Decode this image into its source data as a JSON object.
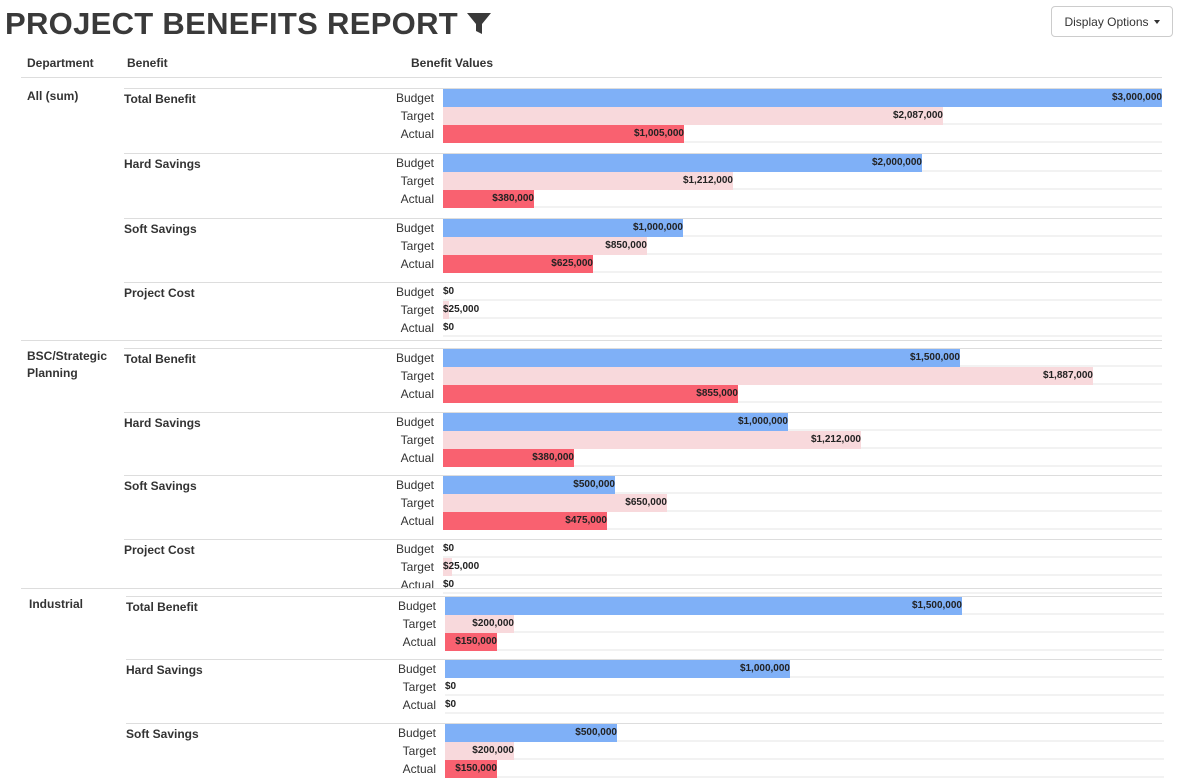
{
  "header": {
    "title": "PROJECT BENEFITS REPORT",
    "filter_icon": "filter-icon",
    "display_options_label": "Display Options"
  },
  "table": {
    "columns": [
      "Department",
      "Benefit",
      "Benefit Values"
    ],
    "row_labels": [
      "Budget",
      "Target",
      "Actual"
    ]
  },
  "chart_data": {
    "type": "bar",
    "orientation": "horizontal",
    "series_colors": {
      "Budget": "#7fb0f7",
      "Target": "#f8d9dc",
      "Actual": "#f96170"
    },
    "departments": [
      {
        "name": "All (sum)",
        "max": 3000000,
        "benefits": [
          {
            "name": "Total Benefit",
            "rows": [
              {
                "series": "Budget",
                "value": 3000000,
                "label": "$3,000,000"
              },
              {
                "series": "Target",
                "value": 2087000,
                "label": "$2,087,000"
              },
              {
                "series": "Actual",
                "value": 1005000,
                "label": "$1,005,000"
              }
            ]
          },
          {
            "name": "Hard Savings",
            "rows": [
              {
                "series": "Budget",
                "value": 2000000,
                "label": "$2,000,000"
              },
              {
                "series": "Target",
                "value": 1212000,
                "label": "$1,212,000"
              },
              {
                "series": "Actual",
                "value": 380000,
                "label": "$380,000"
              }
            ]
          },
          {
            "name": "Soft Savings",
            "rows": [
              {
                "series": "Budget",
                "value": 1000000,
                "label": "$1,000,000"
              },
              {
                "series": "Target",
                "value": 850000,
                "label": "$850,000"
              },
              {
                "series": "Actual",
                "value": 625000,
                "label": "$625,000"
              }
            ]
          },
          {
            "name": "Project Cost",
            "rows": [
              {
                "series": "Budget",
                "value": 0,
                "label": "$0"
              },
              {
                "series": "Target",
                "value": 25000,
                "label": "$25,000"
              },
              {
                "series": "Actual",
                "value": 0,
                "label": "$0"
              }
            ]
          }
        ]
      },
      {
        "name": "BSC/Strategic Planning",
        "max": 2087000,
        "benefits": [
          {
            "name": "Total Benefit",
            "rows": [
              {
                "series": "Budget",
                "value": 1500000,
                "label": "$1,500,000"
              },
              {
                "series": "Target",
                "value": 1887000,
                "label": "$1,887,000"
              },
              {
                "series": "Actual",
                "value": 855000,
                "label": "$855,000"
              }
            ]
          },
          {
            "name": "Hard Savings",
            "rows": [
              {
                "series": "Budget",
                "value": 1000000,
                "label": "$1,000,000"
              },
              {
                "series": "Target",
                "value": 1212000,
                "label": "$1,212,000"
              },
              {
                "series": "Actual",
                "value": 380000,
                "label": "$380,000"
              }
            ]
          },
          {
            "name": "Soft Savings",
            "rows": [
              {
                "series": "Budget",
                "value": 500000,
                "label": "$500,000"
              },
              {
                "series": "Target",
                "value": 650000,
                "label": "$650,000"
              },
              {
                "series": "Actual",
                "value": 475000,
                "label": "$475,000"
              }
            ]
          },
          {
            "name": "Project Cost",
            "rows": [
              {
                "series": "Budget",
                "value": 0,
                "label": "$0"
              },
              {
                "series": "Target",
                "value": 25000,
                "label": "$25,000"
              },
              {
                "series": "Actual",
                "value": 0,
                "label": "$0"
              }
            ]
          }
        ]
      },
      {
        "name": "Industrial",
        "max": 2087000,
        "benefits": [
          {
            "name": "Total Benefit",
            "rows": [
              {
                "series": "Budget",
                "value": 1500000,
                "label": "$1,500,000"
              },
              {
                "series": "Target",
                "value": 200000,
                "label": "$200,000"
              },
              {
                "series": "Actual",
                "value": 150000,
                "label": "$150,000"
              }
            ]
          },
          {
            "name": "Hard Savings",
            "rows": [
              {
                "series": "Budget",
                "value": 1000000,
                "label": "$1,000,000"
              },
              {
                "series": "Target",
                "value": 0,
                "label": "$0"
              },
              {
                "series": "Actual",
                "value": 0,
                "label": "$0"
              }
            ]
          },
          {
            "name": "Soft Savings",
            "rows": [
              {
                "series": "Budget",
                "value": 500000,
                "label": "$500,000"
              },
              {
                "series": "Target",
                "value": 200000,
                "label": "$200,000"
              },
              {
                "series": "Actual",
                "value": 150000,
                "label": "$150,000"
              }
            ]
          }
        ]
      }
    ]
  }
}
